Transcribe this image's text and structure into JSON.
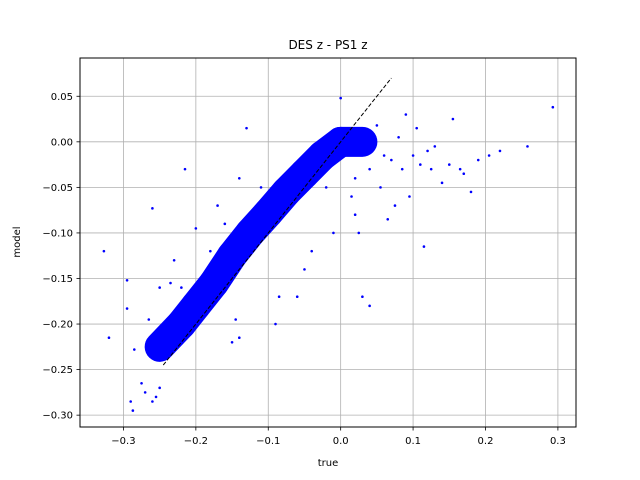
{
  "chart_data": {
    "type": "scatter",
    "title": "DES z - PS1 z",
    "xlabel": "true",
    "ylabel": "model",
    "xlim": [
      -0.36,
      0.325
    ],
    "ylim": [
      -0.313,
      0.092
    ],
    "xticks": [
      -0.3,
      -0.2,
      -0.1,
      0.0,
      0.1,
      0.2,
      0.3
    ],
    "xtick_labels": [
      "−0.3",
      "−0.2",
      "−0.1",
      "0.0",
      "0.1",
      "0.2",
      "0.3"
    ],
    "yticks": [
      -0.3,
      -0.25,
      -0.2,
      -0.15,
      -0.1,
      -0.05,
      0.0,
      0.05
    ],
    "ytick_labels": [
      "−0.30",
      "−0.25",
      "−0.20",
      "−0.15",
      "−0.10",
      "−0.05",
      "0.00",
      "0.05"
    ],
    "grid": true,
    "point_color": "#0000ff",
    "reference_line": {
      "x": [
        -0.245,
        0.07
      ],
      "y": [
        -0.245,
        0.07
      ],
      "style": "dashed",
      "color": "#000000"
    },
    "density_band": [
      {
        "x": -0.25,
        "y": -0.225
      },
      {
        "x": -0.22,
        "y": -0.2
      },
      {
        "x": -0.2,
        "y": -0.18
      },
      {
        "x": -0.175,
        "y": -0.155
      },
      {
        "x": -0.15,
        "y": -0.125
      },
      {
        "x": -0.125,
        "y": -0.1
      },
      {
        "x": -0.1,
        "y": -0.078
      },
      {
        "x": -0.075,
        "y": -0.055
      },
      {
        "x": -0.05,
        "y": -0.035
      },
      {
        "x": -0.025,
        "y": -0.015
      },
      {
        "x": 0.0,
        "y": 0.0
      },
      {
        "x": 0.03,
        "y": 0.0
      }
    ],
    "points": [
      {
        "x": -0.327,
        "y": -0.12
      },
      {
        "x": -0.32,
        "y": -0.215
      },
      {
        "x": -0.295,
        "y": -0.183
      },
      {
        "x": -0.295,
        "y": -0.152
      },
      {
        "x": -0.29,
        "y": -0.285
      },
      {
        "x": -0.287,
        "y": -0.295
      },
      {
        "x": -0.285,
        "y": -0.228
      },
      {
        "x": -0.275,
        "y": -0.265
      },
      {
        "x": -0.27,
        "y": -0.275
      },
      {
        "x": -0.265,
        "y": -0.195
      },
      {
        "x": -0.26,
        "y": -0.285
      },
      {
        "x": -0.26,
        "y": -0.073
      },
      {
        "x": -0.255,
        "y": -0.28
      },
      {
        "x": -0.25,
        "y": -0.27
      },
      {
        "x": -0.25,
        "y": -0.16
      },
      {
        "x": -0.24,
        "y": -0.215
      },
      {
        "x": -0.235,
        "y": -0.155
      },
      {
        "x": -0.23,
        "y": -0.13
      },
      {
        "x": -0.22,
        "y": -0.16
      },
      {
        "x": -0.215,
        "y": -0.03
      },
      {
        "x": -0.2,
        "y": -0.095
      },
      {
        "x": -0.18,
        "y": -0.12
      },
      {
        "x": -0.17,
        "y": -0.07
      },
      {
        "x": -0.16,
        "y": -0.09
      },
      {
        "x": -0.15,
        "y": -0.22
      },
      {
        "x": -0.14,
        "y": -0.215
      },
      {
        "x": -0.14,
        "y": -0.04
      },
      {
        "x": -0.145,
        "y": -0.195
      },
      {
        "x": -0.13,
        "y": 0.015
      },
      {
        "x": -0.11,
        "y": -0.05
      },
      {
        "x": -0.09,
        "y": -0.2
      },
      {
        "x": -0.085,
        "y": -0.17
      },
      {
        "x": -0.06,
        "y": -0.17
      },
      {
        "x": -0.05,
        "y": -0.14
      },
      {
        "x": -0.04,
        "y": -0.12
      },
      {
        "x": -0.02,
        "y": -0.05
      },
      {
        "x": -0.01,
        "y": -0.1
      },
      {
        "x": 0.0,
        "y": 0.048
      },
      {
        "x": 0.01,
        "y": 0.01
      },
      {
        "x": 0.015,
        "y": -0.06
      },
      {
        "x": 0.02,
        "y": -0.04
      },
      {
        "x": 0.02,
        "y": -0.08
      },
      {
        "x": 0.025,
        "y": -0.1
      },
      {
        "x": 0.03,
        "y": -0.17
      },
      {
        "x": 0.04,
        "y": -0.18
      },
      {
        "x": 0.04,
        "y": -0.03
      },
      {
        "x": 0.045,
        "y": -0.005
      },
      {
        "x": 0.05,
        "y": 0.018
      },
      {
        "x": 0.055,
        "y": -0.05
      },
      {
        "x": 0.06,
        "y": -0.015
      },
      {
        "x": 0.065,
        "y": -0.085
      },
      {
        "x": 0.07,
        "y": -0.02
      },
      {
        "x": 0.075,
        "y": -0.07
      },
      {
        "x": 0.08,
        "y": 0.005
      },
      {
        "x": 0.085,
        "y": -0.03
      },
      {
        "x": 0.09,
        "y": 0.03
      },
      {
        "x": 0.095,
        "y": -0.06
      },
      {
        "x": 0.1,
        "y": -0.015
      },
      {
        "x": 0.105,
        "y": 0.015
      },
      {
        "x": 0.11,
        "y": -0.025
      },
      {
        "x": 0.115,
        "y": -0.115
      },
      {
        "x": 0.12,
        "y": -0.01
      },
      {
        "x": 0.125,
        "y": -0.03
      },
      {
        "x": 0.13,
        "y": -0.005
      },
      {
        "x": 0.14,
        "y": -0.045
      },
      {
        "x": 0.15,
        "y": -0.025
      },
      {
        "x": 0.155,
        "y": 0.025
      },
      {
        "x": 0.165,
        "y": -0.03
      },
      {
        "x": 0.17,
        "y": -0.035
      },
      {
        "x": 0.18,
        "y": -0.055
      },
      {
        "x": 0.19,
        "y": -0.02
      },
      {
        "x": 0.205,
        "y": -0.015
      },
      {
        "x": 0.22,
        "y": -0.01
      },
      {
        "x": 0.258,
        "y": -0.005
      },
      {
        "x": 0.293,
        "y": 0.038
      }
    ]
  }
}
